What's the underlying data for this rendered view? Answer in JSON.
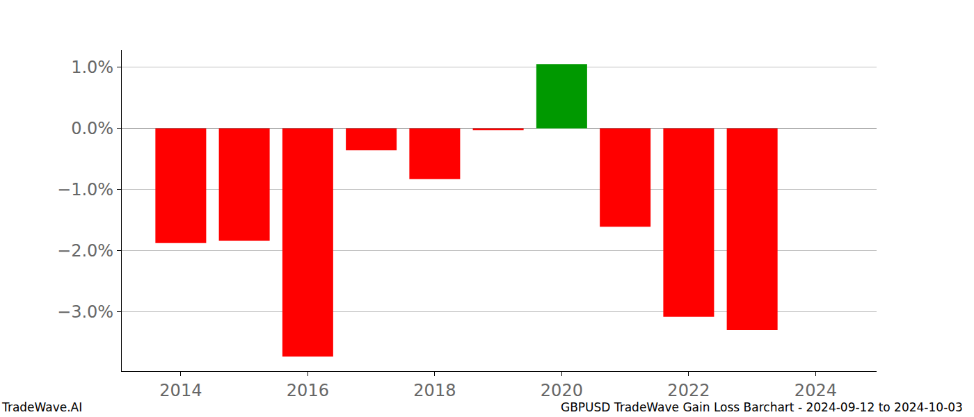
{
  "chart_data": {
    "type": "bar",
    "x": [
      2014,
      2015,
      2016,
      2017,
      2018,
      2019,
      2020,
      2021,
      2022,
      2023
    ],
    "values": [
      -1.875,
      -1.84,
      -3.73,
      -0.36,
      -0.83,
      -0.03,
      1.05,
      -1.61,
      -3.08,
      -3.3
    ],
    "colors": [
      "#ff0000",
      "#ff0000",
      "#ff0000",
      "#ff0000",
      "#ff0000",
      "#ff0000",
      "#009900",
      "#ff0000",
      "#ff0000",
      "#ff0000"
    ],
    "xlim": [
      2013.07,
      2024.96
    ],
    "xticks": [
      2014,
      2016,
      2018,
      2020,
      2022,
      2024
    ],
    "ylim": [
      -3.97,
      1.28
    ],
    "yticks": [
      {
        "value": 1,
        "label": "1.0%"
      },
      {
        "value": 0,
        "label": "0.0%"
      },
      {
        "value": -1,
        "label": "−1.0%"
      },
      {
        "value": -2,
        "label": "−2.0%"
      },
      {
        "value": -3,
        "label": "−3.0%"
      }
    ],
    "grid": true,
    "annotations": [
      "TradeWave.AI",
      "GBPUSD TradeWave Gain Loss Barchart - 2024-09-12 to 2024-10-03"
    ]
  }
}
